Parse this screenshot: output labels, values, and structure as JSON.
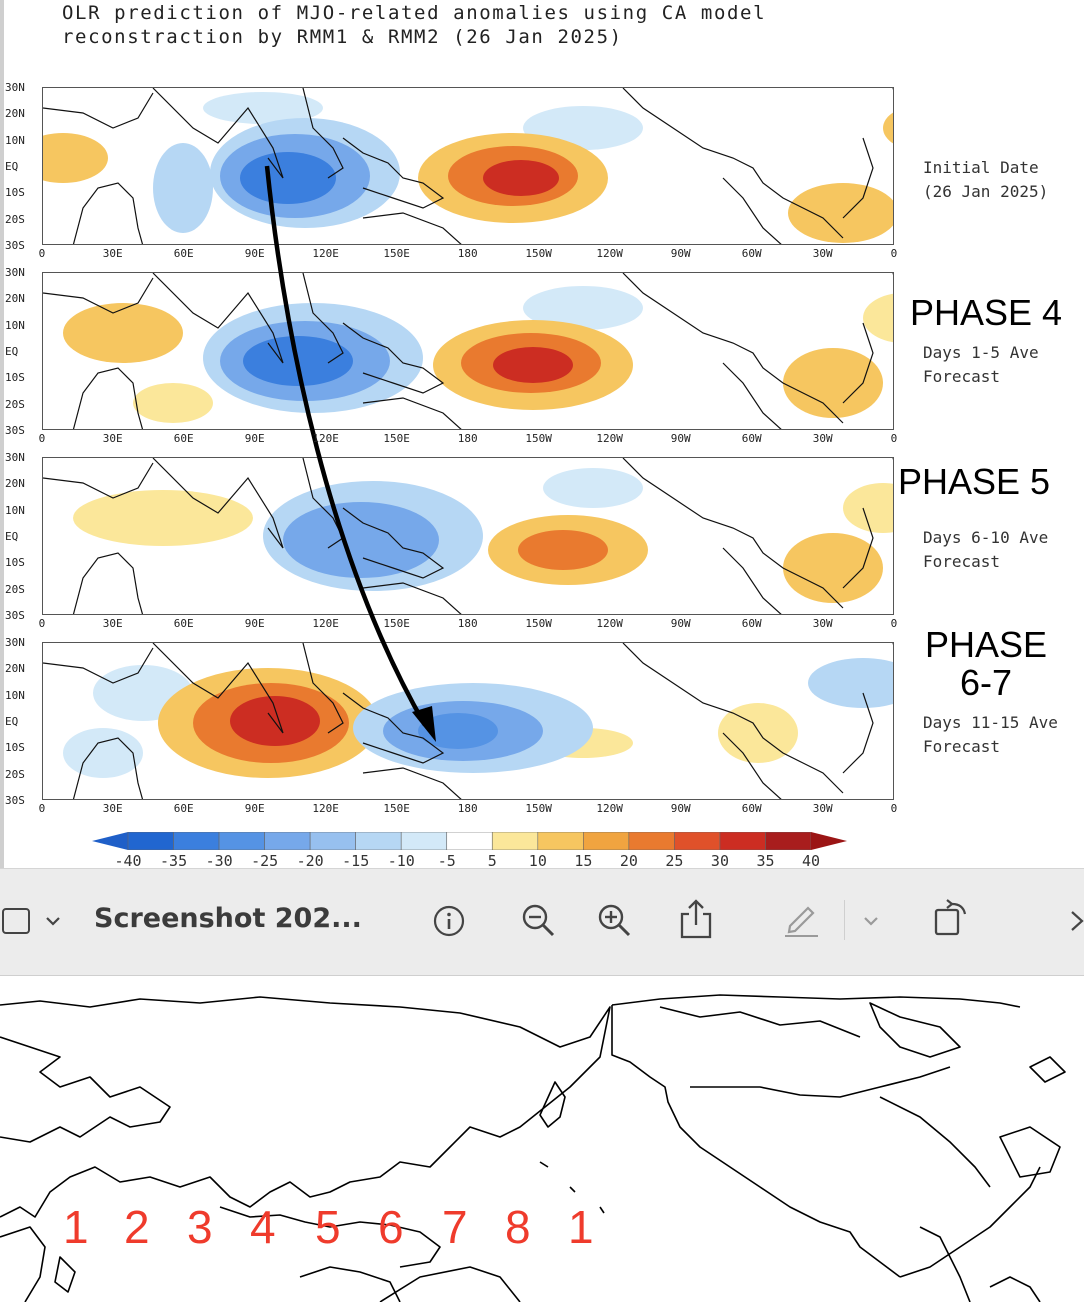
{
  "figure": {
    "title_line1": "OLR prediction of MJO-related anomalies using CA model",
    "title_line2": "reconstraction by RMM1 & RMM2 (26 Jan 2025)",
    "lat_labels": [
      "30N",
      "20N",
      "10N",
      "EQ",
      "10S",
      "20S",
      "30S"
    ],
    "lon_labels": [
      "0",
      "30E",
      "60E",
      "90E",
      "120E",
      "150E",
      "180",
      "150W",
      "120W",
      "90W",
      "60W",
      "30W",
      "0"
    ],
    "panels": [
      {
        "desc": "Initial Date\n(26 Jan 2025)",
        "phase": ""
      },
      {
        "desc": "Days 1-5 Ave\nForecast",
        "phase": "PHASE 4"
      },
      {
        "desc": "Days 6-10 Ave\nForecast",
        "phase": "PHASE 5"
      },
      {
        "desc": "Days 11-15 Ave\nForecast",
        "phase": "PHASE\n6-7"
      }
    ],
    "colorbar": {
      "labels": [
        "-40",
        "-35",
        "-30",
        "-25",
        "-20",
        "-15",
        "-10",
        "-5",
        "5",
        "10",
        "15",
        "20",
        "25",
        "30",
        "35",
        "40"
      ],
      "colors": [
        "#2166d0",
        "#3b7fde",
        "#5593e4",
        "#76a8ea",
        "#97c0ef",
        "#b6d7f4",
        "#d3e9f8",
        "#ffffff",
        "#fbe79a",
        "#f6c660",
        "#f0a440",
        "#e97a2f",
        "#e0512a",
        "#cc2d22",
        "#a81d1d"
      ],
      "negative_end": "#1f5fc8",
      "positive_end": "#9b1515"
    },
    "arrow_color": "#000000"
  },
  "toolbar": {
    "title": "Screenshot 202...",
    "icons": [
      "sidebar-icon",
      "chevron-down-icon",
      "info-icon",
      "zoom-out-icon",
      "zoom-in-icon",
      "share-icon",
      "markup-pen-icon",
      "chevron-down-icon",
      "rotate-icon",
      "chevron-right-icon"
    ]
  },
  "world_map": {
    "phase_numbers": [
      "1",
      "2",
      "3",
      "4",
      "5",
      "6",
      "7",
      "8",
      "1"
    ],
    "number_color": "#ef3b2c"
  }
}
